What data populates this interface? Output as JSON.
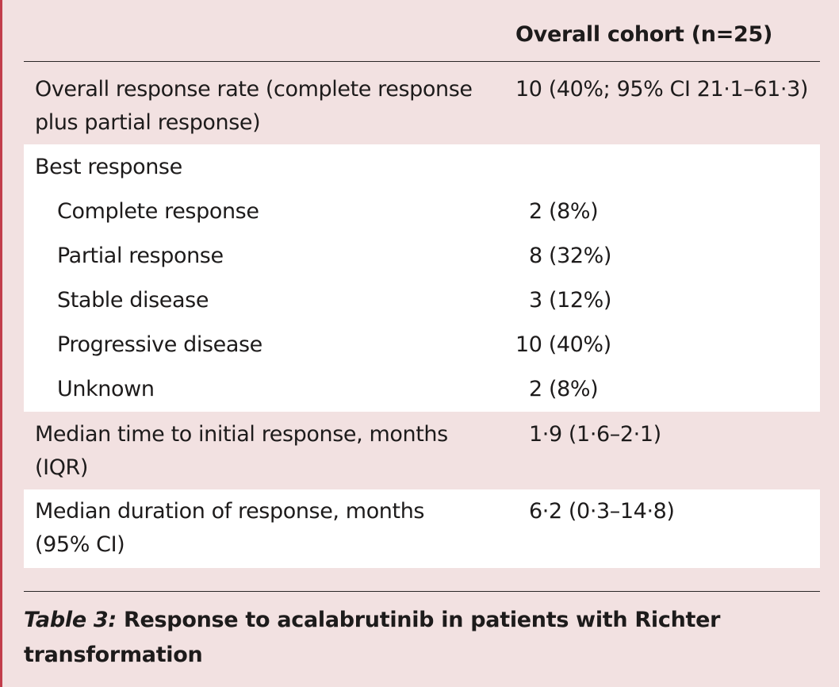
{
  "table": {
    "column_header": "Overall cohort (n=25)",
    "rows": [
      {
        "label_line1": "Overall response rate (complete response",
        "label_line2": "plus partial response)",
        "value": "10 (40%; 95% CI 21·1–61·3)"
      },
      {
        "label": "Best response"
      },
      {
        "label": "Complete response",
        "value": "2 (8%)"
      },
      {
        "label": "Partial response",
        "value": "8 (32%)"
      },
      {
        "label": "Stable disease",
        "value": "3 (12%)"
      },
      {
        "label": "Progressive disease",
        "value": "10 (40%)"
      },
      {
        "label": "Unknown",
        "value": "2 (8%)"
      },
      {
        "label_line1": "Median time to initial response, months",
        "label_line2": "(IQR)",
        "value": "1·9 (1·6–2·1)"
      },
      {
        "label_line1": "Median duration of response, months",
        "label_line2": "(95% CI)",
        "value": "6·2 (0·3–14·8)"
      }
    ]
  },
  "caption": {
    "number": "Table 3:",
    "text": "Response to acalabrutinib in patients with Richter transformation"
  }
}
